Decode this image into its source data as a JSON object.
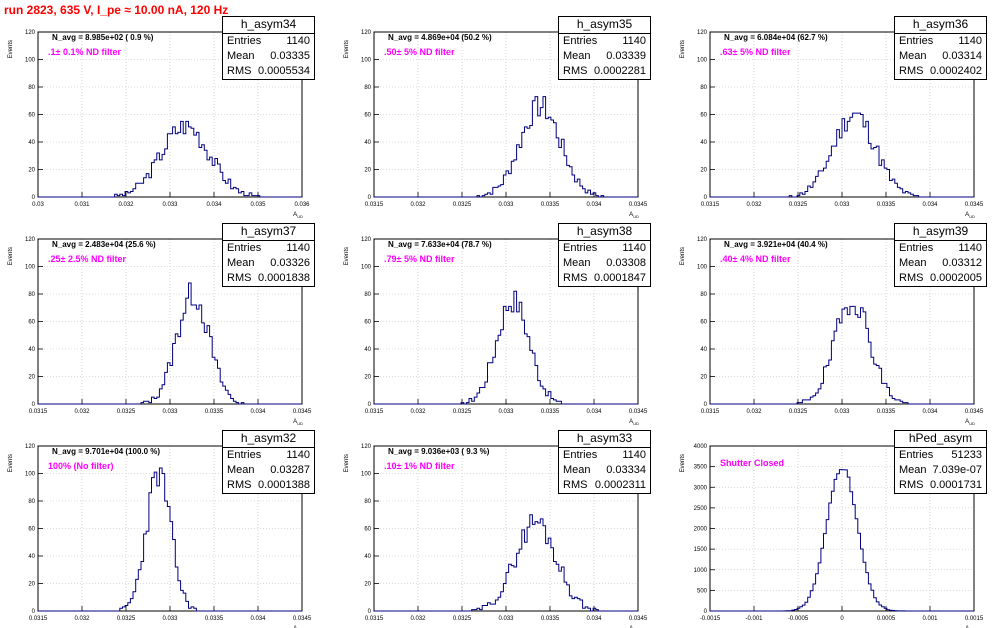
{
  "header": {
    "title": "run 2823,   635 V, I_pe ≈ 10.00 nA, 120 Hz"
  },
  "colors": {
    "histogram": "#000080",
    "title": "#ff0000",
    "annotation": "#ff00ff",
    "grid": "#bbbbbb"
  },
  "axis_labels": {
    "x": "A_UD",
    "y": "Events"
  },
  "chart_data": [
    {
      "type": "histogram",
      "name": "h_asym34",
      "navg": "N_avg = 8.985e+02 ( 0.9 %)",
      "filter": ".1± 0.1% ND filter",
      "stats": {
        "entries": "1140",
        "mean": "0.03335",
        "rms": "0.0005534"
      },
      "xlim": [
        0.03,
        0.036
      ],
      "ylim": [
        0,
        120
      ],
      "xticks": [
        "0.03",
        "0.031",
        "0.032",
        "0.033",
        "0.034",
        "0.035",
        "0.036"
      ],
      "yticks": [
        "0",
        "20",
        "40",
        "60",
        "80",
        "100",
        "120"
      ],
      "dist": {
        "mean": 0.03335,
        "sigma": 0.00055,
        "peak": 52,
        "seed": 3
      }
    },
    {
      "type": "histogram",
      "name": "h_asym35",
      "navg": "N_avg = 4.869e+04 (50.2 %)",
      "filter": ".50± 5% ND filter",
      "stats": {
        "entries": "1140",
        "mean": "0.03339",
        "rms": "0.0002281"
      },
      "xlim": [
        0.0315,
        0.0345
      ],
      "ylim": [
        0,
        120
      ],
      "xticks": [
        "0.0315",
        "0.032",
        "0.0325",
        "0.033",
        "0.0335",
        "0.034",
        "0.0345"
      ],
      "yticks": [
        "0",
        "20",
        "40",
        "60",
        "80",
        "100",
        "120"
      ],
      "dist": {
        "mean": 0.03339,
        "sigma": 0.00023,
        "peak": 66,
        "seed": 7
      }
    },
    {
      "type": "histogram",
      "name": "h_asym36",
      "navg": "N_avg = 6.084e+04 (62.7 %)",
      "filter": ".63± 5% ND filter",
      "stats": {
        "entries": "1140",
        "mean": "0.03314",
        "rms": "0.0002402"
      },
      "xlim": [
        0.0315,
        0.0345
      ],
      "ylim": [
        0,
        120
      ],
      "xticks": [
        "0.0315",
        "0.032",
        "0.0325",
        "0.033",
        "0.0335",
        "0.034",
        "0.0345"
      ],
      "yticks": [
        "0",
        "20",
        "40",
        "60",
        "80",
        "100",
        "120"
      ],
      "dist": {
        "mean": 0.03314,
        "sigma": 0.00024,
        "peak": 60,
        "seed": 11
      }
    },
    {
      "type": "histogram",
      "name": "h_asym37",
      "navg": "N_avg = 2.483e+04 (25.6 %)",
      "filter": ".25± 2.5% ND filter",
      "stats": {
        "entries": "1140",
        "mean": "0.03326",
        "rms": "0.0001838"
      },
      "xlim": [
        0.0315,
        0.0345
      ],
      "ylim": [
        0,
        120
      ],
      "xticks": [
        "0.0315",
        "0.032",
        "0.0325",
        "0.033",
        "0.0335",
        "0.034",
        "0.0345"
      ],
      "yticks": [
        "0",
        "20",
        "40",
        "60",
        "80",
        "100",
        "120"
      ],
      "dist": {
        "mean": 0.03326,
        "sigma": 0.000184,
        "peak": 80,
        "seed": 13
      }
    },
    {
      "type": "histogram",
      "name": "h_asym38",
      "navg": "N_avg = 7.633e+04 (78.7 %)",
      "filter": ".79± 5% ND filter",
      "stats": {
        "entries": "1140",
        "mean": "0.03308",
        "rms": "0.0001847"
      },
      "xlim": [
        0.0315,
        0.0345
      ],
      "ylim": [
        0,
        120
      ],
      "xticks": [
        "0.0315",
        "0.032",
        "0.0325",
        "0.033",
        "0.0335",
        "0.034",
        "0.0345"
      ],
      "yticks": [
        "0",
        "20",
        "40",
        "60",
        "80",
        "100",
        "120"
      ],
      "dist": {
        "mean": 0.03308,
        "sigma": 0.000185,
        "peak": 76,
        "seed": 17
      }
    },
    {
      "type": "histogram",
      "name": "h_asym39",
      "navg": "N_avg = 3.921e+04 (40.4 %)",
      "filter": ".40± 4% ND filter",
      "stats": {
        "entries": "1140",
        "mean": "0.03312",
        "rms": "0.0002005"
      },
      "xlim": [
        0.0315,
        0.0345
      ],
      "ylim": [
        0,
        120
      ],
      "xticks": [
        "0.0315",
        "0.032",
        "0.0325",
        "0.033",
        "0.0335",
        "0.034",
        "0.0345"
      ],
      "yticks": [
        "0",
        "20",
        "40",
        "60",
        "80",
        "100",
        "120"
      ],
      "dist": {
        "mean": 0.03312,
        "sigma": 0.0002,
        "peak": 76,
        "seed": 19
      }
    },
    {
      "type": "histogram",
      "name": "h_asym32",
      "navg": "N_avg = 9.701e+04 (100.0 %)",
      "filter": "100% (No filter)",
      "stats": {
        "entries": "1140",
        "mean": "0.03287",
        "rms": "0.0001388"
      },
      "xlim": [
        0.0315,
        0.0345
      ],
      "ylim": [
        0,
        120
      ],
      "xticks": [
        "0.0315",
        "0.032",
        "0.0325",
        "0.033",
        "0.0335",
        "0.034",
        "0.0345"
      ],
      "yticks": [
        "0",
        "20",
        "40",
        "60",
        "80",
        "100",
        "120"
      ],
      "dist": {
        "mean": 0.03287,
        "sigma": 0.000139,
        "peak": 100,
        "seed": 23
      }
    },
    {
      "type": "histogram",
      "name": "h_asym33",
      "navg": "N_avg = 9.036e+03 ( 9.3 %)",
      "filter": ".10± 1% ND filter",
      "stats": {
        "entries": "1140",
        "mean": "0.03334",
        "rms": "0.0002311"
      },
      "xlim": [
        0.0315,
        0.0345
      ],
      "ylim": [
        0,
        120
      ],
      "xticks": [
        "0.0315",
        "0.032",
        "0.0325",
        "0.033",
        "0.0335",
        "0.034",
        "0.0345"
      ],
      "yticks": [
        "0",
        "20",
        "40",
        "60",
        "80",
        "100",
        "120"
      ],
      "dist": {
        "mean": 0.03334,
        "sigma": 0.000231,
        "peak": 65,
        "seed": 29
      }
    },
    {
      "type": "histogram",
      "name": "hPed_asym",
      "navg": "",
      "filter": "Shutter Closed",
      "stats": {
        "entries": "51233",
        "mean": "7.039e-07",
        "rms": "0.0001731"
      },
      "xlim": [
        -0.0015,
        0.0015
      ],
      "ylim": [
        0,
        4000
      ],
      "xticks": [
        "-0.0015",
        "-0.001",
        "-0.0005",
        "0",
        "0.0005",
        "0.001",
        "0.0015"
      ],
      "yticks": [
        "0",
        "500",
        "1000",
        "1500",
        "2000",
        "2500",
        "3000",
        "3500",
        "4000"
      ],
      "dist": {
        "mean": 0.0,
        "sigma": 0.000173,
        "peak": 3500,
        "seed": 31
      }
    }
  ]
}
